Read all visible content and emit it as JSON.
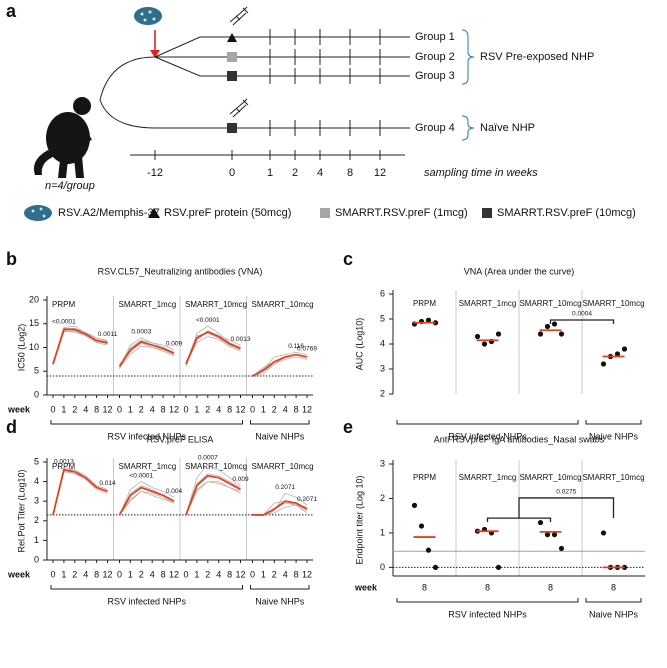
{
  "diagram": {
    "panel": "a",
    "groups": [
      "Group 1",
      "Group 2",
      "Group 3",
      "Group 4"
    ],
    "cohorts": [
      "RSV Pre-exposed NHP",
      "Naïve NHP"
    ],
    "animals": "n=4/group",
    "timeline": {
      "ticks": [
        "-12",
        "0",
        "1",
        "2",
        "4",
        "8",
        "12"
      ],
      "label": "sampling time in weeks"
    }
  },
  "legend": [
    "RSV.A2/Memphis-37",
    "RSV.preF protein (50mcg)",
    "SMARRT.RSV.preF (1mcg)",
    "SMARRT.RSV.preF (10mcg)"
  ],
  "chart_data": [
    {
      "type": "line",
      "panel": "b",
      "title": "RSV.CL57_Neutralizing antibodies (VNA)",
      "y_label": "IC50 (Log2)",
      "x_label": "week",
      "ylim": [
        0,
        20
      ],
      "yticks": [
        0,
        5,
        10,
        15,
        20
      ],
      "threshold": 4,
      "categories": [
        "0",
        "1",
        "2",
        "4",
        "8",
        "12"
      ],
      "center_color": "#e8401c",
      "individual_color": "#b3b3b3",
      "groups": [
        {
          "label": "RSV infected NHPs",
          "panels": [
            {
              "name": "PRPM",
              "center": [
                6.5,
                13.8,
                13.8,
                12.8,
                11.5,
                11.0
              ],
              "individuals": [
                [
                  6.5,
                  14.2,
                  14.5,
                  13,
                  12,
                  11.5
                ],
                [
                  6.8,
                  13.5,
                  13.2,
                  12.5,
                  11,
                  10.5
                ],
                [
                  6.3,
                  14,
                  14,
                  13.2,
                  12,
                  11.3
                ],
                [
                  6.4,
                  13.3,
                  13.5,
                  12.5,
                  11.2,
                  10.8
                ]
              ],
              "annotations": [
                "<0.0001",
                "0.0011"
              ]
            },
            {
              "name": "SMARRT_1mcg",
              "center": [
                6,
                9.5,
                11.2,
                10.5,
                9.8,
                8.8
              ],
              "individuals": [
                [
                  5.5,
                  10,
                  11.5,
                  11,
                  10.5,
                  9.5
                ],
                [
                  6.5,
                  9,
                  11,
                  10,
                  9.5,
                  8.5
                ],
                [
                  6,
                  10.5,
                  12,
                  11,
                  10,
                  9
                ],
                [
                  5.8,
                  8.5,
                  10.3,
                  10,
                  9.2,
                  8.2
                ]
              ],
              "annotations": [
                "0.0003",
                "0.009"
              ]
            },
            {
              "name": "SMARRT_10mcg",
              "center": [
                6.5,
                12,
                13.3,
                12.3,
                10.8,
                9.8
              ],
              "individuals": [
                [
                  6.5,
                  13,
                  14.5,
                  13,
                  11,
                  10
                ],
                [
                  7,
                  11.5,
                  13.5,
                  12.5,
                  11.5,
                  10.5
                ],
                [
                  6,
                  12.5,
                  13,
                  12,
                  10.5,
                  9.5
                ],
                [
                  6.5,
                  11,
                  12.3,
                  11.7,
                  10.2,
                  9.2
                ]
              ],
              "annotations": [
                "<0.0001",
                "0.0013"
              ]
            }
          ]
        },
        {
          "label": "Naive NHPs",
          "panels": [
            {
              "name": "SMARRT_10mcg",
              "center": [
                4,
                5.2,
                7,
                8,
                8.5,
                8
              ],
              "individuals": [
                [
                  4,
                  5,
                  6.5,
                  7.5,
                  8,
                  7.5
                ],
                [
                  4,
                  5.5,
                  8,
                  8.5,
                  9,
                  8.5
                ],
                [
                  4,
                  4.5,
                  6.5,
                  8,
                  8.5,
                  8
                ],
                [
                  4,
                  5.8,
                  7,
                  8,
                  8.5,
                  8
                ]
              ],
              "annotations": [
                "0.116",
                "0.0769"
              ]
            }
          ]
        }
      ]
    },
    {
      "type": "dot",
      "panel": "c",
      "title": "VNA (Area under the curve)",
      "y_label": "AUC (Log10)",
      "ylim": [
        2,
        6
      ],
      "yticks": [
        2,
        3,
        4,
        5,
        6
      ],
      "center_color": "#e8401c",
      "point_color": "#111111",
      "groups": [
        {
          "label": "RSV infected NHPs",
          "panels": [
            {
              "name": "PRPM",
              "values": [
                4.8,
                4.9,
                4.95,
                4.85
              ],
              "center": 4.85
            },
            {
              "name": "SMARRT_1mcg",
              "values": [
                4.3,
                4.0,
                4.1,
                4.4
              ],
              "center": 4.15
            },
            {
              "name": "SMARRT_10mcg",
              "values": [
                4.4,
                4.7,
                4.8,
                4.4
              ],
              "center": 4.55
            }
          ]
        },
        {
          "label": "Naive NHPs",
          "panels": [
            {
              "name": "SMARRT_10mcg",
              "values": [
                3.2,
                3.5,
                3.6,
                3.8
              ],
              "center": 3.5
            }
          ]
        }
      ],
      "significance": {
        "label": "0.0004",
        "between": [
          [
            2
          ],
          [
            3
          ]
        ]
      }
    },
    {
      "type": "line",
      "panel": "d",
      "title": "RSV.preF ELISA",
      "y_label": "Rel.Pot Titer (Log10)",
      "x_label": "week",
      "ylim": [
        0,
        5
      ],
      "yticks": [
        0,
        1,
        2,
        3,
        4,
        5
      ],
      "threshold": 2.3,
      "categories": [
        "0",
        "1",
        "2",
        "4",
        "8",
        "12"
      ],
      "center_color": "#e8401c",
      "individual_color": "#b3b3b3",
      "groups": [
        {
          "label": "RSV infected NHPs",
          "panels": [
            {
              "name": "PRPM",
              "center": [
                2.3,
                4.6,
                4.5,
                4.2,
                3.7,
                3.5
              ],
              "individuals": [
                [
                  2.3,
                  4.7,
                  4.6,
                  4.3,
                  3.8,
                  3.6
                ],
                [
                  2.3,
                  4.5,
                  4.4,
                  4.1,
                  3.6,
                  3.4
                ],
                [
                  2.3,
                  4.6,
                  4.6,
                  4.2,
                  3.7,
                  3.5
                ],
                [
                  2.3,
                  4.6,
                  4.4,
                  4.2,
                  3.7,
                  3.5
                ]
              ],
              "annotations": [
                "0.0013",
                "0.014"
              ]
            },
            {
              "name": "SMARRT_1mcg",
              "center": [
                2.3,
                3.3,
                3.7,
                3.5,
                3.3,
                3.0
              ],
              "individuals": [
                [
                  2.3,
                  3.6,
                  4.0,
                  3.7,
                  3.5,
                  3.2
                ],
                [
                  2.3,
                  3.1,
                  3.5,
                  3.4,
                  3.2,
                  2.9
                ],
                [
                  2.3,
                  3.4,
                  3.8,
                  3.6,
                  3.3,
                  3.0
                ],
                [
                  2.3,
                  3.0,
                  3.5,
                  3.3,
                  3.1,
                  2.9
                ]
              ],
              "annotations": [
                "<0.0001",
                "0.004"
              ]
            },
            {
              "name": "SMARRT_10mcg",
              "center": [
                2.3,
                3.8,
                4.3,
                4.2,
                3.9,
                3.6
              ],
              "individuals": [
                [
                  2.3,
                  4.2,
                  4.9,
                  4.6,
                  4.2,
                  3.8
                ],
                [
                  2.3,
                  3.5,
                  4.0,
                  4.0,
                  3.7,
                  3.5
                ],
                [
                  2.3,
                  3.9,
                  4.4,
                  4.3,
                  4.0,
                  3.7
                ],
                [
                  2.3,
                  3.6,
                  4.0,
                  3.9,
                  3.7,
                  3.4
                ]
              ],
              "annotations": [
                "0.0007",
                "0.009"
              ]
            }
          ]
        },
        {
          "label": "Naive NHPs",
          "panels": [
            {
              "name": "SMARRT_10mcg",
              "center": [
                2.3,
                2.3,
                2.6,
                3.0,
                2.9,
                2.6
              ],
              "individuals": [
                [
                  2.3,
                  2.3,
                  2.5,
                  3.4,
                  3.2,
                  2.8
                ],
                [
                  2.3,
                  2.3,
                  2.9,
                  3.0,
                  2.8,
                  2.5
                ],
                [
                  2.3,
                  2.3,
                  2.4,
                  2.7,
                  2.8,
                  2.7
                ],
                [
                  2.3,
                  2.3,
                  2.6,
                  2.9,
                  2.8,
                  2.4
                ]
              ],
              "annotations": [
                "0.2071",
                "0.2071"
              ]
            }
          ]
        }
      ]
    },
    {
      "type": "dot",
      "panel": "e",
      "title": "Anti-RSVpreF IgA antibodies_Nasal swabs",
      "y_label": "Endpoint titer (Log 10)",
      "x_label": "week",
      "ylim": [
        -0.25,
        3
      ],
      "yticks": [
        0,
        1,
        2,
        3
      ],
      "threshold": 0,
      "cutoff": 0.47,
      "center_color": "#e8401c",
      "point_color": "#111111",
      "groups": [
        {
          "label": "RSV infected NHPs",
          "panels": [
            {
              "name": "PRPM",
              "week": "8",
              "values": [
                1.8,
                1.2,
                0.5,
                0
              ],
              "center": 0.88
            },
            {
              "name": "SMARRT_1mcg",
              "week": "8",
              "values": [
                1.05,
                1.1,
                1.0,
                0
              ],
              "center": 1.05
            },
            {
              "name": "SMARRT_10mcg",
              "week": "8",
              "values": [
                1.3,
                0.95,
                0.95,
                0.55
              ],
              "center": 1.03
            }
          ]
        },
        {
          "label": "Naive NHPs",
          "panels": [
            {
              "name": "SMARRT_10mcg",
              "week": "8",
              "values": [
                1.0,
                0,
                0,
                0
              ],
              "center": 0
            }
          ]
        }
      ],
      "significance": {
        "label": "0.0275",
        "between": [
          [
            1,
            2
          ],
          [
            3
          ]
        ]
      }
    }
  ]
}
